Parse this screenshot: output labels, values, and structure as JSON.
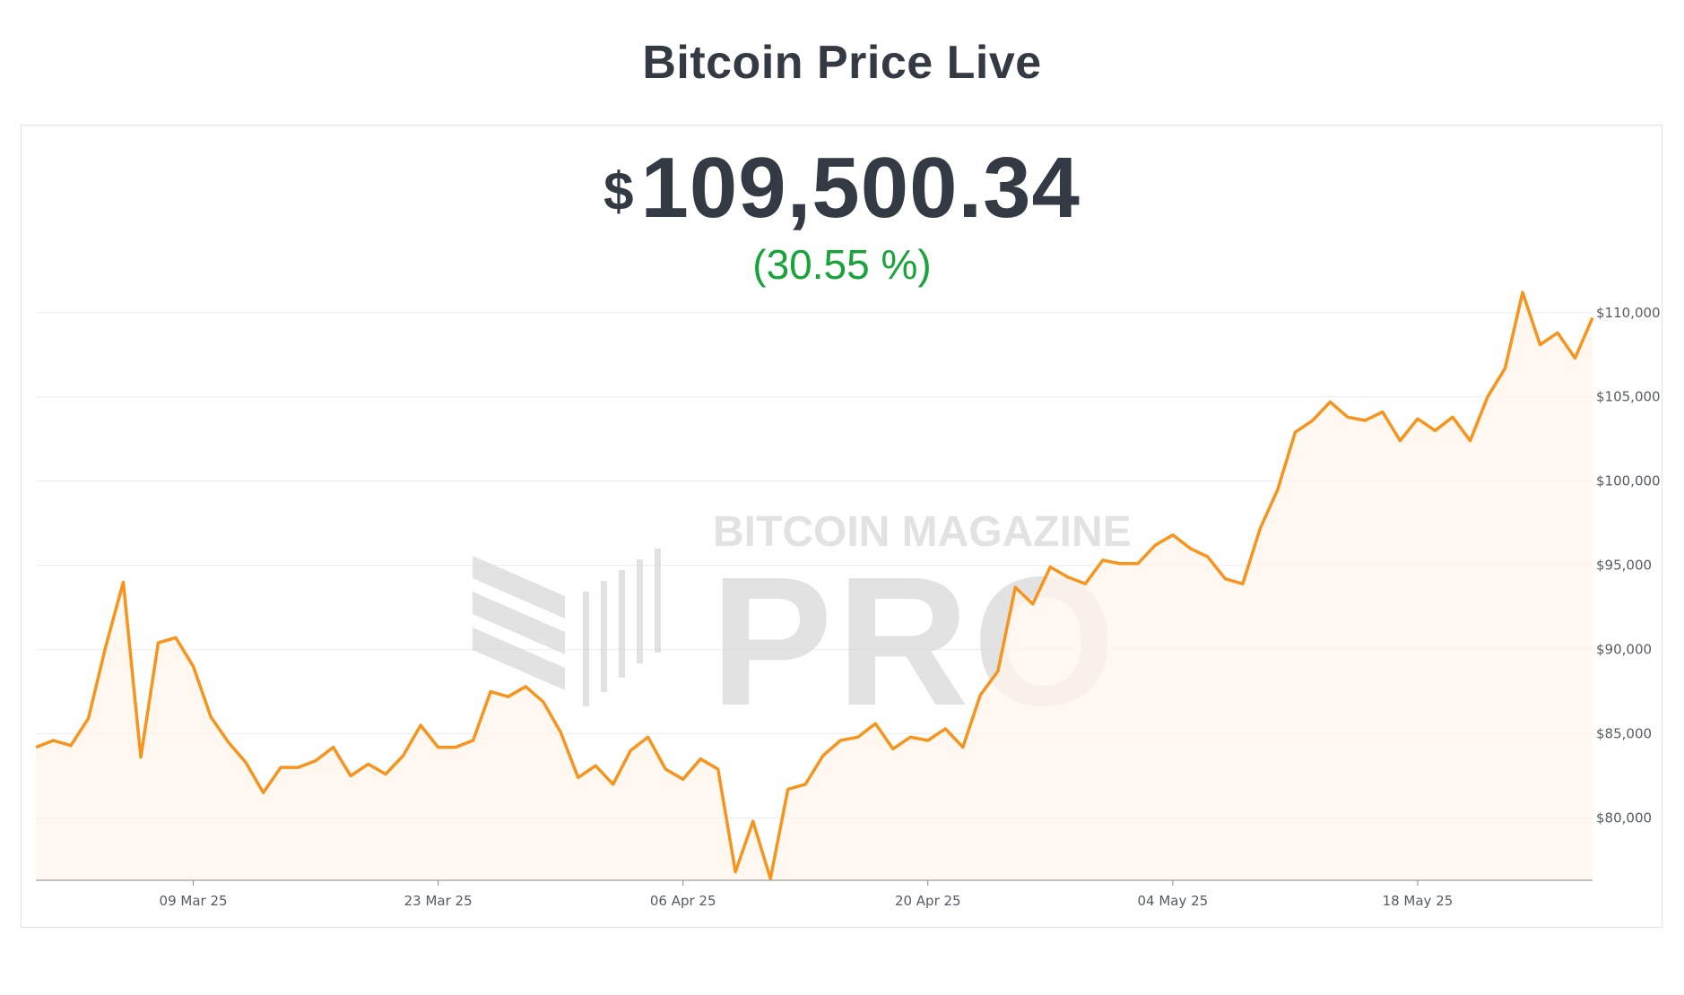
{
  "header": {
    "title": "Bitcoin Price Live"
  },
  "price": {
    "currency_symbol": "$",
    "value": "109,500.34",
    "change": "(30.55 %)",
    "change_color": "#19a33b"
  },
  "watermark": {
    "line1": "BITCOIN MAGAZINE",
    "line2": "PRO",
    "icon": "bitcoin-magazine-logo-icon"
  },
  "colors": {
    "line": "#f7941d",
    "area": "#fef6eb",
    "grid": "#ececec",
    "text": "#343a44"
  },
  "chart_data": {
    "type": "area",
    "title": "",
    "xlabel": "",
    "ylabel": "",
    "x_start": "2025-02-28",
    "x_end": "2025-05-28",
    "x_ticks": [
      {
        "date": "2025-03-09",
        "label": "09 Mar 25"
      },
      {
        "date": "2025-03-23",
        "label": "23 Mar 25"
      },
      {
        "date": "2025-04-06",
        "label": "06 Apr 25"
      },
      {
        "date": "2025-04-20",
        "label": "20 Apr 25"
      },
      {
        "date": "2025-05-04",
        "label": "04 May 25"
      },
      {
        "date": "2025-05-18",
        "label": "18 May 25"
      }
    ],
    "ylim": [
      76300,
      111000
    ],
    "y_ticks": [
      {
        "value": 80000,
        "label": "$80,000"
      },
      {
        "value": 85000,
        "label": "$85,000"
      },
      {
        "value": 90000,
        "label": "$90,000"
      },
      {
        "value": 95000,
        "label": "$95,000"
      },
      {
        "value": 100000,
        "label": "$100,000"
      },
      {
        "value": 105000,
        "label": "$105,000"
      },
      {
        "value": 110000,
        "label": "$110,000"
      }
    ],
    "grid": true,
    "series": [
      {
        "values": [
          84200,
          84600,
          84300,
          85900,
          90200,
          94000,
          83600,
          90400,
          90700,
          89000,
          86000,
          84500,
          83300,
          81500,
          83000,
          83000,
          83400,
          84200,
          82500,
          83200,
          82600,
          83700,
          85500,
          84200,
          84200,
          84600,
          87500,
          87200,
          87800,
          86900,
          85100,
          82400,
          83100,
          82000,
          84000,
          84800,
          82900,
          82300,
          83500,
          82900,
          76800,
          79800,
          76400,
          81700,
          82000,
          83700,
          84600,
          84800,
          85600,
          84100,
          84800,
          84600,
          85300,
          84200,
          87300,
          88700,
          93700,
          92700,
          94900,
          94300,
          93900,
          95300,
          95100,
          95100,
          96200,
          96800,
          96000,
          95500,
          94200,
          93900,
          97200,
          99500,
          102900,
          103600,
          104700,
          103800,
          103600,
          104100,
          102400,
          103700,
          103000,
          103800,
          102400,
          105000,
          106700,
          111200,
          108100,
          108800,
          107300,
          109700
        ]
      }
    ]
  }
}
